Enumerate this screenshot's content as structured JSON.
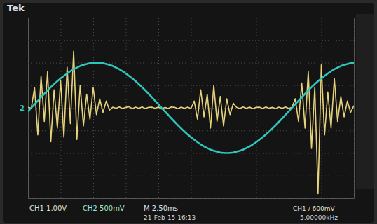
{
  "chart_data": {
    "type": "line",
    "annotations": [
      "Tek",
      "2",
      "CH1 1.00V",
      "CH2 500mV",
      "M 2.50ms",
      "21-Feb-15 16:13",
      "CH1 ∕ 600mV",
      "5.00000kHz"
    ],
    "x": [
      0,
      0.1,
      0.2,
      0.3,
      0.4,
      0.5,
      0.6,
      0.7,
      0.8,
      0.9,
      1,
      1.1,
      1.2,
      1.3,
      1.4,
      1.5,
      1.6,
      1.7,
      1.8,
      1.9,
      2,
      2.1,
      2.2,
      2.3,
      2.4,
      2.5,
      2.6,
      2.7,
      2.8,
      2.9,
      3,
      3.1,
      3.2,
      3.3,
      3.4,
      3.5,
      3.6,
      3.7,
      3.8,
      3.9,
      4,
      4.1,
      4.2,
      4.3,
      4.4,
      4.5,
      4.6,
      4.7,
      4.8,
      4.9,
      5,
      5.1,
      5.2,
      5.3,
      5.4,
      5.5,
      5.6,
      5.7,
      5.8,
      5.9,
      6,
      6.1,
      6.2,
      6.3,
      6.4,
      6.5,
      6.6,
      6.7,
      6.8,
      6.9,
      7,
      7.1,
      7.2,
      7.3,
      7.4,
      7.5,
      7.6,
      7.7,
      7.8,
      7.9,
      8,
      8.1,
      8.2,
      8.3,
      8.4,
      8.5,
      8.6,
      8.7,
      8.8,
      8.9,
      9,
      9.1,
      9.2,
      9.3,
      9.4,
      9.5,
      9.6,
      9.7,
      9.8,
      9.9,
      10
    ],
    "series": [
      {
        "color": "#e6d27c",
        "values": [
          0.02,
          -0.02,
          0.9,
          -1.2,
          1.4,
          -0.6,
          1.6,
          -1.5,
          0.8,
          -0.9,
          1.2,
          -1.3,
          1.8,
          -0.7,
          2.5,
          -1.4,
          1.0,
          -0.8,
          0.6,
          -0.5,
          0.9,
          -0.3,
          0.4,
          -0.2,
          0.3,
          -0.1,
          0.03,
          -0.02,
          0.04,
          -0.03,
          0.02,
          0.05,
          -0.04,
          0.03,
          -0.02,
          0.04,
          -0.03,
          0.02,
          0.03,
          -0.02,
          0.04,
          -0.05,
          0.02,
          -0.03,
          0.04,
          0.02,
          -0.04,
          0.03,
          -0.02,
          0.03,
          -0.03,
          0.3,
          -0.5,
          0.8,
          -0.4,
          0.6,
          -0.9,
          1.0,
          -0.6,
          0.5,
          -0.8,
          0.4,
          -0.3,
          0.2,
          0.02,
          -0.03,
          0.04,
          -0.02,
          0.03,
          -0.04,
          0.02,
          0.03,
          -0.03,
          0.04,
          -0.02,
          0.02,
          -0.04,
          0.03,
          -0.02,
          0.04,
          -0.03,
          0.02,
          0.4,
          -0.6,
          1.1,
          -0.9,
          1.6,
          -1.8,
          0.9,
          -3.8,
          1.9,
          -1.2,
          0.7,
          -0.9,
          1.3,
          -0.6,
          0.5,
          -0.4,
          0.3,
          -0.2,
          0.1
        ]
      },
      {
        "color": "#2fc6bd",
        "values": [
          -0.16,
          0,
          0.16,
          0.31,
          0.47,
          0.62,
          0.77,
          0.91,
          1.05,
          1.18,
          1.3,
          1.41,
          1.52,
          1.62,
          1.71,
          1.78,
          1.85,
          1.9,
          1.94,
          1.98,
          1.99,
          2.0,
          1.99,
          1.98,
          1.94,
          1.9,
          1.85,
          1.78,
          1.71,
          1.62,
          1.52,
          1.41,
          1.3,
          1.18,
          1.05,
          0.91,
          0.77,
          0.62,
          0.47,
          0.31,
          0.16,
          0,
          -0.16,
          -0.31,
          -0.47,
          -0.62,
          -0.77,
          -0.91,
          -1.05,
          -1.18,
          -1.3,
          -1.41,
          -1.52,
          -1.62,
          -1.71,
          -1.78,
          -1.85,
          -1.9,
          -1.94,
          -1.98,
          -1.99,
          -2.0,
          -1.99,
          -1.98,
          -1.94,
          -1.9,
          -1.85,
          -1.78,
          -1.71,
          -1.62,
          -1.52,
          -1.41,
          -1.3,
          -1.18,
          -1.05,
          -0.91,
          -0.77,
          -0.62,
          -0.47,
          -0.31,
          -0.16,
          0,
          0.16,
          0.31,
          0.47,
          0.62,
          0.77,
          0.91,
          1.05,
          1.18,
          1.3,
          1.41,
          1.52,
          1.62,
          1.71,
          1.78,
          1.85,
          1.9,
          1.94,
          1.98,
          1.99
        ]
      }
    ],
    "xlim": [
      0,
      10
    ],
    "ylim": [
      -4,
      4
    ],
    "xticks": [
      0,
      1,
      2,
      3,
      4,
      5,
      6,
      7,
      8,
      9,
      10
    ],
    "yticks": [
      -4,
      -3,
      -2,
      -1,
      0,
      1,
      2,
      3,
      4
    ],
    "grid": true,
    "tick_labels": false
  }
}
